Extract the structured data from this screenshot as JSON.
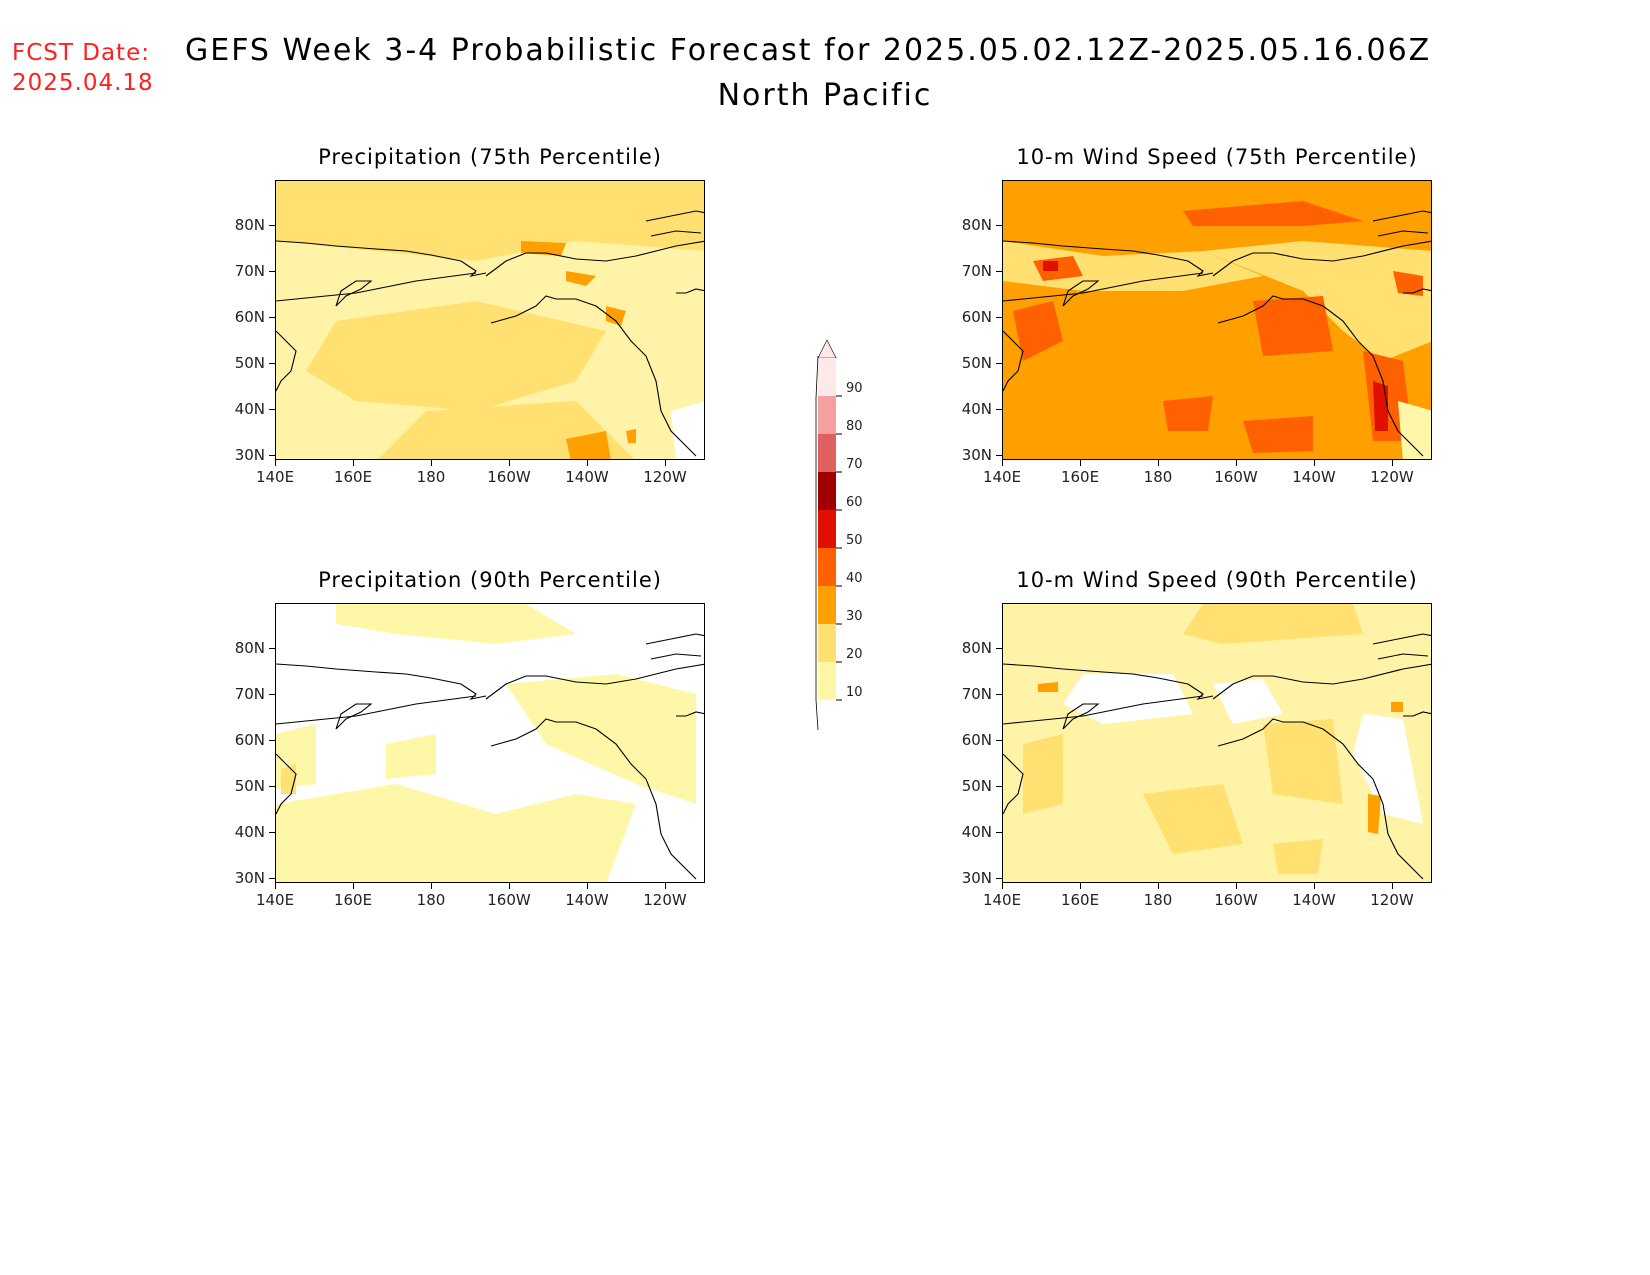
{
  "header": {
    "fcst_label_line1": "FCST Date:",
    "fcst_label_line2": "2025.04.18",
    "title": "GEFS Week 3-4 Probabilistic Forecast for 2025.05.02.12Z-2025.05.16.06Z",
    "subtitle": "North Pacific"
  },
  "axes": {
    "lat_labels": [
      "80N",
      "70N",
      "60N",
      "50N",
      "40N",
      "30N"
    ],
    "lon_labels": [
      "140E",
      "160E",
      "180",
      "160W",
      "140W",
      "120W"
    ]
  },
  "panels": [
    {
      "id": "precip75",
      "title": "Precipitation (75th Percentile)",
      "base_color": "#fff3a8",
      "fill_level": 20
    },
    {
      "id": "wind75",
      "title": "10-m Wind Speed (75th Percentile)",
      "base_color": "#ff9f00",
      "fill_level": 30
    },
    {
      "id": "precip90",
      "title": "Precipitation (90th Percentile)",
      "base_color": "#ffffff",
      "fill_level": 10
    },
    {
      "id": "wind90",
      "title": "10-m Wind Speed (90th Percentile)",
      "base_color": "#fff3a8",
      "fill_level": 10
    }
  ],
  "colorbar": {
    "labels": [
      "90",
      "80",
      "70",
      "60",
      "50",
      "40",
      "30",
      "20",
      "10"
    ],
    "colors": [
      "#ffe8e8",
      "#f4a0a0",
      "#e06060",
      "#a00000",
      "#e01000",
      "#ff6000",
      "#ff9f00",
      "#ffe070",
      "#fff7a8"
    ]
  }
}
